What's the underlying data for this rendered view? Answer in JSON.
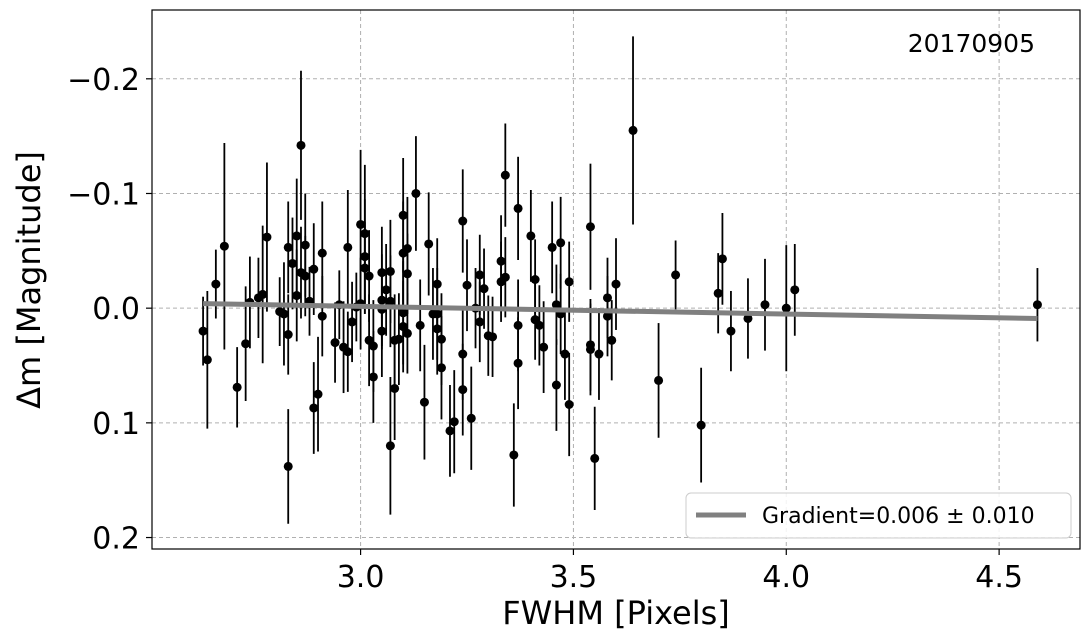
{
  "chart_data": {
    "type": "scatter",
    "xlabel": "FWHM [Pixels]",
    "ylabel": "Δm [Magnitude]",
    "annotation": "20170905",
    "xlim": [
      2.51,
      4.69
    ],
    "ylim": [
      0.21,
      -0.26
    ],
    "y_inverted": true,
    "grid": true,
    "legend_position": "bottom-right",
    "x_ticks": [
      3.0,
      3.5,
      4.0,
      4.5
    ],
    "x_tick_labels": [
      "3.0",
      "3.5",
      "4.0",
      "4.5"
    ],
    "y_ticks": [
      -0.2,
      -0.1,
      0.0,
      0.1,
      0.2
    ],
    "y_tick_labels": [
      "−0.2",
      "−0.1",
      "0.0",
      "0.1",
      "0.2"
    ],
    "colors": {
      "points": "#000000",
      "fit": "#808080",
      "grid": "#b0b0b0"
    },
    "fit": {
      "label": "Gradient=0.006 ± 0.010",
      "x": [
        2.63,
        4.59
      ],
      "y": [
        -0.004,
        0.009
      ]
    },
    "points": [
      {
        "x": 2.63,
        "y": 0.02,
        "e": 0.03
      },
      {
        "x": 2.64,
        "y": 0.045,
        "e": 0.06
      },
      {
        "x": 2.66,
        "y": -0.021,
        "e": 0.03
      },
      {
        "x": 2.68,
        "y": -0.054,
        "e": 0.09
      },
      {
        "x": 2.71,
        "y": 0.069,
        "e": 0.035
      },
      {
        "x": 2.73,
        "y": 0.031,
        "e": 0.05
      },
      {
        "x": 2.74,
        "y": -0.005,
        "e": 0.04
      },
      {
        "x": 2.76,
        "y": -0.009,
        "e": 0.035
      },
      {
        "x": 2.77,
        "y": -0.012,
        "e": 0.06
      },
      {
        "x": 2.78,
        "y": -0.062,
        "e": 0.065
      },
      {
        "x": 2.81,
        "y": 0.003,
        "e": 0.03
      },
      {
        "x": 2.82,
        "y": 0.005,
        "e": 0.045
      },
      {
        "x": 2.83,
        "y": -0.053,
        "e": 0.04
      },
      {
        "x": 2.83,
        "y": 0.023,
        "e": 0.035
      },
      {
        "x": 2.83,
        "y": 0.138,
        "e": 0.05
      },
      {
        "x": 2.84,
        "y": -0.039,
        "e": 0.04
      },
      {
        "x": 2.85,
        "y": -0.063,
        "e": 0.05
      },
      {
        "x": 2.85,
        "y": -0.011,
        "e": 0.04
      },
      {
        "x": 2.86,
        "y": -0.142,
        "e": 0.065
      },
      {
        "x": 2.86,
        "y": -0.031,
        "e": 0.04
      },
      {
        "x": 2.87,
        "y": -0.055,
        "e": 0.045
      },
      {
        "x": 2.87,
        "y": -0.028,
        "e": 0.035
      },
      {
        "x": 2.88,
        "y": -0.006,
        "e": 0.03
      },
      {
        "x": 2.89,
        "y": -0.034,
        "e": 0.04
      },
      {
        "x": 2.89,
        "y": 0.087,
        "e": 0.04
      },
      {
        "x": 2.9,
        "y": 0.075,
        "e": 0.05
      },
      {
        "x": 2.91,
        "y": -0.048,
        "e": 0.045
      },
      {
        "x": 2.91,
        "y": 0.007,
        "e": 0.035
      },
      {
        "x": 2.94,
        "y": 0.03,
        "e": 0.035
      },
      {
        "x": 2.95,
        "y": -0.003,
        "e": 0.03
      },
      {
        "x": 2.96,
        "y": 0.034,
        "e": 0.04
      },
      {
        "x": 2.97,
        "y": -0.053,
        "e": 0.05
      },
      {
        "x": 2.97,
        "y": 0.038,
        "e": 0.035
      },
      {
        "x": 2.98,
        "y": 0.012,
        "e": 0.035
      },
      {
        "x": 2.99,
        "y": -0.001,
        "e": 0.03
      },
      {
        "x": 3.0,
        "y": -0.073,
        "e": 0.065
      },
      {
        "x": 3.0,
        "y": -0.004,
        "e": 0.04
      },
      {
        "x": 3.01,
        "y": -0.045,
        "e": 0.05
      },
      {
        "x": 3.01,
        "y": -0.035,
        "e": 0.04
      },
      {
        "x": 3.01,
        "y": -0.065,
        "e": 0.06
      },
      {
        "x": 3.02,
        "y": -0.028,
        "e": 0.04
      },
      {
        "x": 3.02,
        "y": 0.028,
        "e": 0.04
      },
      {
        "x": 3.03,
        "y": 0.033,
        "e": 0.04
      },
      {
        "x": 3.03,
        "y": 0.06,
        "e": 0.04
      },
      {
        "x": 3.05,
        "y": -0.031,
        "e": 0.04
      },
      {
        "x": 3.05,
        "y": -0.007,
        "e": 0.04
      },
      {
        "x": 3.05,
        "y": 0.001,
        "e": 0.035
      },
      {
        "x": 3.05,
        "y": 0.02,
        "e": 0.04
      },
      {
        "x": 3.06,
        "y": -0.016,
        "e": 0.04
      },
      {
        "x": 3.07,
        "y": -0.032,
        "e": 0.045
      },
      {
        "x": 3.07,
        "y": -0.006,
        "e": 0.04
      },
      {
        "x": 3.07,
        "y": 0.12,
        "e": 0.06
      },
      {
        "x": 3.08,
        "y": 0.07,
        "e": 0.045
      },
      {
        "x": 3.08,
        "y": 0.028,
        "e": 0.04
      },
      {
        "x": 3.09,
        "y": 0.027,
        "e": 0.04
      },
      {
        "x": 3.1,
        "y": -0.081,
        "e": 0.05
      },
      {
        "x": 3.1,
        "y": -0.048,
        "e": 0.045
      },
      {
        "x": 3.1,
        "y": 0.004,
        "e": 0.045
      },
      {
        "x": 3.1,
        "y": 0.016,
        "e": 0.04
      },
      {
        "x": 3.11,
        "y": -0.052,
        "e": 0.045
      },
      {
        "x": 3.11,
        "y": -0.03,
        "e": 0.035
      },
      {
        "x": 3.11,
        "y": 0.022,
        "e": 0.035
      },
      {
        "x": 3.13,
        "y": -0.1,
        "e": 0.05
      },
      {
        "x": 3.14,
        "y": 0.015,
        "e": 0.04
      },
      {
        "x": 3.15,
        "y": 0.082,
        "e": 0.05
      },
      {
        "x": 3.16,
        "y": -0.056,
        "e": 0.045
      },
      {
        "x": 3.17,
        "y": 0.005,
        "e": 0.04
      },
      {
        "x": 3.18,
        "y": 0.005,
        "e": 0.04
      },
      {
        "x": 3.18,
        "y": 0.018,
        "e": 0.04
      },
      {
        "x": 3.18,
        "y": -0.021,
        "e": 0.04
      },
      {
        "x": 3.19,
        "y": 0.027,
        "e": 0.04
      },
      {
        "x": 3.19,
        "y": 0.052,
        "e": 0.045
      },
      {
        "x": 3.21,
        "y": 0.107,
        "e": 0.04
      },
      {
        "x": 3.22,
        "y": 0.099,
        "e": 0.045
      },
      {
        "x": 3.24,
        "y": -0.076,
        "e": 0.045
      },
      {
        "x": 3.24,
        "y": 0.04,
        "e": 0.04
      },
      {
        "x": 3.24,
        "y": 0.071,
        "e": 0.04
      },
      {
        "x": 3.25,
        "y": -0.02,
        "e": 0.04
      },
      {
        "x": 3.26,
        "y": 0.096,
        "e": 0.045
      },
      {
        "x": 3.27,
        "y": 0.0,
        "e": 0.035
      },
      {
        "x": 3.28,
        "y": -0.029,
        "e": 0.035
      },
      {
        "x": 3.28,
        "y": 0.012,
        "e": 0.035
      },
      {
        "x": 3.29,
        "y": -0.017,
        "e": 0.035
      },
      {
        "x": 3.3,
        "y": 0.024,
        "e": 0.035
      },
      {
        "x": 3.31,
        "y": 0.025,
        "e": 0.035
      },
      {
        "x": 3.33,
        "y": -0.041,
        "e": 0.04
      },
      {
        "x": 3.33,
        "y": -0.023,
        "e": 0.035
      },
      {
        "x": 3.34,
        "y": -0.116,
        "e": 0.045
      },
      {
        "x": 3.34,
        "y": -0.027,
        "e": 0.035
      },
      {
        "x": 3.36,
        "y": 0.128,
        "e": 0.045
      },
      {
        "x": 3.37,
        "y": -0.087,
        "e": 0.045
      },
      {
        "x": 3.37,
        "y": 0.015,
        "e": 0.04
      },
      {
        "x": 3.37,
        "y": 0.048,
        "e": 0.04
      },
      {
        "x": 3.4,
        "y": -0.063,
        "e": 0.04
      },
      {
        "x": 3.41,
        "y": -0.025,
        "e": 0.035
      },
      {
        "x": 3.41,
        "y": 0.01,
        "e": 0.035
      },
      {
        "x": 3.42,
        "y": 0.015,
        "e": 0.035
      },
      {
        "x": 3.43,
        "y": 0.034,
        "e": 0.04
      },
      {
        "x": 3.45,
        "y": -0.053,
        "e": 0.04
      },
      {
        "x": 3.46,
        "y": -0.003,
        "e": 0.035
      },
      {
        "x": 3.46,
        "y": 0.067,
        "e": 0.04
      },
      {
        "x": 3.47,
        "y": -0.057,
        "e": 0.04
      },
      {
        "x": 3.47,
        "y": 0.005,
        "e": 0.035
      },
      {
        "x": 3.48,
        "y": 0.04,
        "e": 0.04
      },
      {
        "x": 3.49,
        "y": -0.023,
        "e": 0.035
      },
      {
        "x": 3.49,
        "y": 0.084,
        "e": 0.045
      },
      {
        "x": 3.54,
        "y": -0.071,
        "e": 0.055
      },
      {
        "x": 3.54,
        "y": 0.036,
        "e": 0.04
      },
      {
        "x": 3.54,
        "y": 0.032,
        "e": 0.04
      },
      {
        "x": 3.55,
        "y": 0.131,
        "e": 0.045
      },
      {
        "x": 3.56,
        "y": 0.04,
        "e": 0.04
      },
      {
        "x": 3.58,
        "y": -0.009,
        "e": 0.035
      },
      {
        "x": 3.58,
        "y": 0.007,
        "e": 0.035
      },
      {
        "x": 3.59,
        "y": 0.028,
        "e": 0.035
      },
      {
        "x": 3.6,
        "y": -0.021,
        "e": 0.04
      },
      {
        "x": 3.64,
        "y": -0.155,
        "e": 0.082
      },
      {
        "x": 3.7,
        "y": 0.063,
        "e": 0.05
      },
      {
        "x": 3.74,
        "y": -0.029,
        "e": 0.03
      },
      {
        "x": 3.8,
        "y": 0.102,
        "e": 0.05
      },
      {
        "x": 3.84,
        "y": -0.013,
        "e": 0.035
      },
      {
        "x": 3.85,
        "y": -0.043,
        "e": 0.04
      },
      {
        "x": 3.87,
        "y": 0.02,
        "e": 0.035
      },
      {
        "x": 3.91,
        "y": 0.009,
        "e": 0.035
      },
      {
        "x": 3.95,
        "y": -0.003,
        "e": 0.04
      },
      {
        "x": 4.0,
        "y": 0.0,
        "e": 0.055
      },
      {
        "x": 4.02,
        "y": -0.016,
        "e": 0.04
      },
      {
        "x": 4.59,
        "y": -0.003,
        "e": 0.032
      }
    ]
  }
}
